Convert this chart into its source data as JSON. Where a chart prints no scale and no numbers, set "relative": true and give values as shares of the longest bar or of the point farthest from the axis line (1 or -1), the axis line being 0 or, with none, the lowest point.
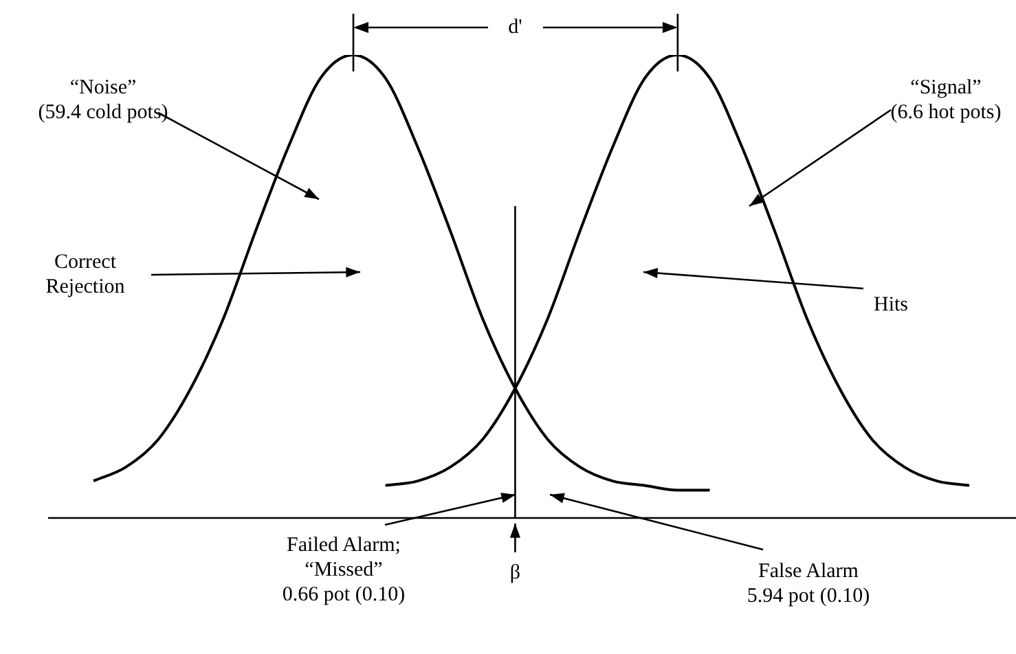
{
  "chart_data": {
    "type": "line",
    "relative": true,
    "legend": false,
    "marker": "none",
    "line_style": "solid",
    "categories": [
      null,
      null,
      null,
      null,
      null,
      null,
      null,
      null,
      null,
      null,
      null,
      null,
      null,
      null,
      null,
      null,
      null,
      null,
      null,
      null,
      null,
      null,
      null,
      null,
      null,
      null,
      null,
      null
    ],
    "series": [
      {
        "color": "#000000",
        "values": [
          0.08,
          0.11,
          0.17,
          0.28,
          0.43,
          0.62,
          0.8,
          0.95,
          1,
          0.95,
          0.8,
          0.62,
          0.43,
          0.28,
          0.17,
          0.11,
          0.08,
          0.07,
          0.06,
          0.06,
          null,
          null,
          null,
          null,
          null,
          null,
          null,
          null
        ]
      },
      {
        "color": "#000000",
        "values": [
          null,
          null,
          null,
          null,
          null,
          null,
          null,
          null,
          null,
          0.07,
          0.08,
          0.11,
          0.17,
          0.28,
          0.43,
          0.62,
          0.8,
          0.95,
          1,
          0.95,
          0.8,
          0.62,
          0.43,
          0.28,
          0.17,
          0.11,
          0.08,
          0.07
        ]
      }
    ],
    "annotations": [
      "d'",
      "“Noise”\n(59.4 cold pots)",
      "“Signal”\n(6.6 hot pots)",
      "Correct\nRejection",
      "Hits",
      "Failed Alarm;\n“Missed”\n0.66 pot (0.10)",
      "False Alarm\n5.94 pot (0.10)",
      "β"
    ]
  }
}
